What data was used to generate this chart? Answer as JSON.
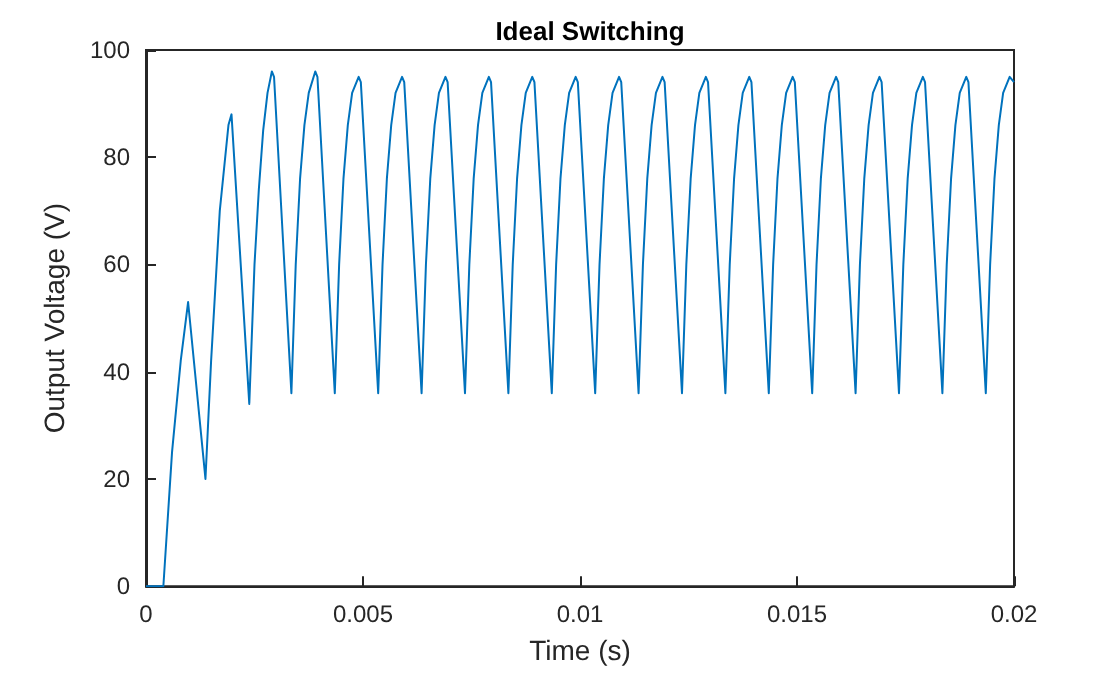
{
  "chart_data": {
    "type": "line",
    "title": "Ideal Switching",
    "xlabel": "Time (s)",
    "ylabel": "Output Voltage (V)",
    "xlim": [
      0,
      0.02
    ],
    "xticks": [
      0,
      0.005,
      0.01,
      0.015,
      0.02
    ],
    "ylim": [
      0,
      100
    ],
    "yticks": [
      0,
      20,
      40,
      60,
      80,
      100
    ],
    "grid": false,
    "marker": "none",
    "line_style": "solid",
    "series": [
      {
        "color": "#0072bd",
        "x": [
          0,
          0.0004,
          0.0006,
          0.0008,
          0.00097,
          0.00137,
          0.0015,
          0.0017,
          0.0019,
          0.00197,
          0.00238,
          0.0025,
          0.0026,
          0.0027,
          0.0028,
          0.0029,
          0.00295,
          0.00335,
          0.00345,
          0.00355,
          0.00365,
          0.00375,
          0.0039,
          0.00395,
          0.00435,
          0.00445,
          0.00455,
          0.00465,
          0.00475,
          0.0049,
          0.00495,
          0.00535,
          0.00545,
          0.00555,
          0.00565,
          0.00575,
          0.0059,
          0.00595,
          0.00635,
          0.00645,
          0.00655,
          0.00665,
          0.00675,
          0.0069,
          0.00695,
          0.00735,
          0.00745,
          0.00755,
          0.00765,
          0.00775,
          0.0079,
          0.00795,
          0.00835,
          0.00845,
          0.00855,
          0.00865,
          0.00875,
          0.0089,
          0.00895,
          0.00935,
          0.00945,
          0.00955,
          0.00965,
          0.00975,
          0.0099,
          0.00995,
          0.01035,
          0.01045,
          0.01055,
          0.01065,
          0.01075,
          0.0109,
          0.01095,
          0.01135,
          0.01145,
          0.01155,
          0.01165,
          0.01175,
          0.0119,
          0.01195,
          0.01235,
          0.01245,
          0.01255,
          0.01265,
          0.01275,
          0.0129,
          0.01295,
          0.01335,
          0.01345,
          0.01355,
          0.01365,
          0.01375,
          0.0139,
          0.01395,
          0.01435,
          0.01445,
          0.01455,
          0.01465,
          0.01475,
          0.0149,
          0.01495,
          0.01535,
          0.01545,
          0.01555,
          0.01565,
          0.01575,
          0.0159,
          0.01595,
          0.01635,
          0.01645,
          0.01655,
          0.01665,
          0.01675,
          0.0169,
          0.01695,
          0.01735,
          0.01745,
          0.01755,
          0.01765,
          0.01775,
          0.0179,
          0.01795,
          0.01835,
          0.01845,
          0.01855,
          0.01865,
          0.01875,
          0.0189,
          0.01895,
          0.01935,
          0.01945,
          0.01955,
          0.01965,
          0.01975,
          0.0199,
          0.02
        ],
        "values": [
          0,
          0,
          25,
          42,
          53,
          20,
          42,
          70,
          86,
          88,
          34,
          60,
          74,
          85,
          92,
          96,
          95,
          36,
          60,
          76,
          86,
          92,
          96,
          95,
          36,
          60,
          76,
          86,
          92,
          95,
          94,
          36,
          60,
          76,
          86,
          92,
          95,
          94,
          36,
          60,
          76,
          86,
          92,
          95,
          94,
          36,
          60,
          76,
          86,
          92,
          95,
          94,
          36,
          60,
          76,
          86,
          92,
          95,
          94,
          36,
          60,
          76,
          86,
          92,
          95,
          94,
          36,
          60,
          76,
          86,
          92,
          95,
          94,
          36,
          60,
          76,
          86,
          92,
          95,
          94,
          36,
          60,
          76,
          86,
          92,
          95,
          94,
          36,
          60,
          76,
          86,
          92,
          95,
          94,
          36,
          60,
          76,
          86,
          92,
          95,
          94,
          36,
          60,
          76,
          86,
          92,
          95,
          94,
          36,
          60,
          76,
          86,
          92,
          95,
          94,
          36,
          60,
          76,
          86,
          92,
          95,
          94,
          36,
          60,
          76,
          86,
          92,
          95,
          94,
          36,
          60,
          76,
          86,
          92,
          95,
          94
        ]
      }
    ]
  }
}
